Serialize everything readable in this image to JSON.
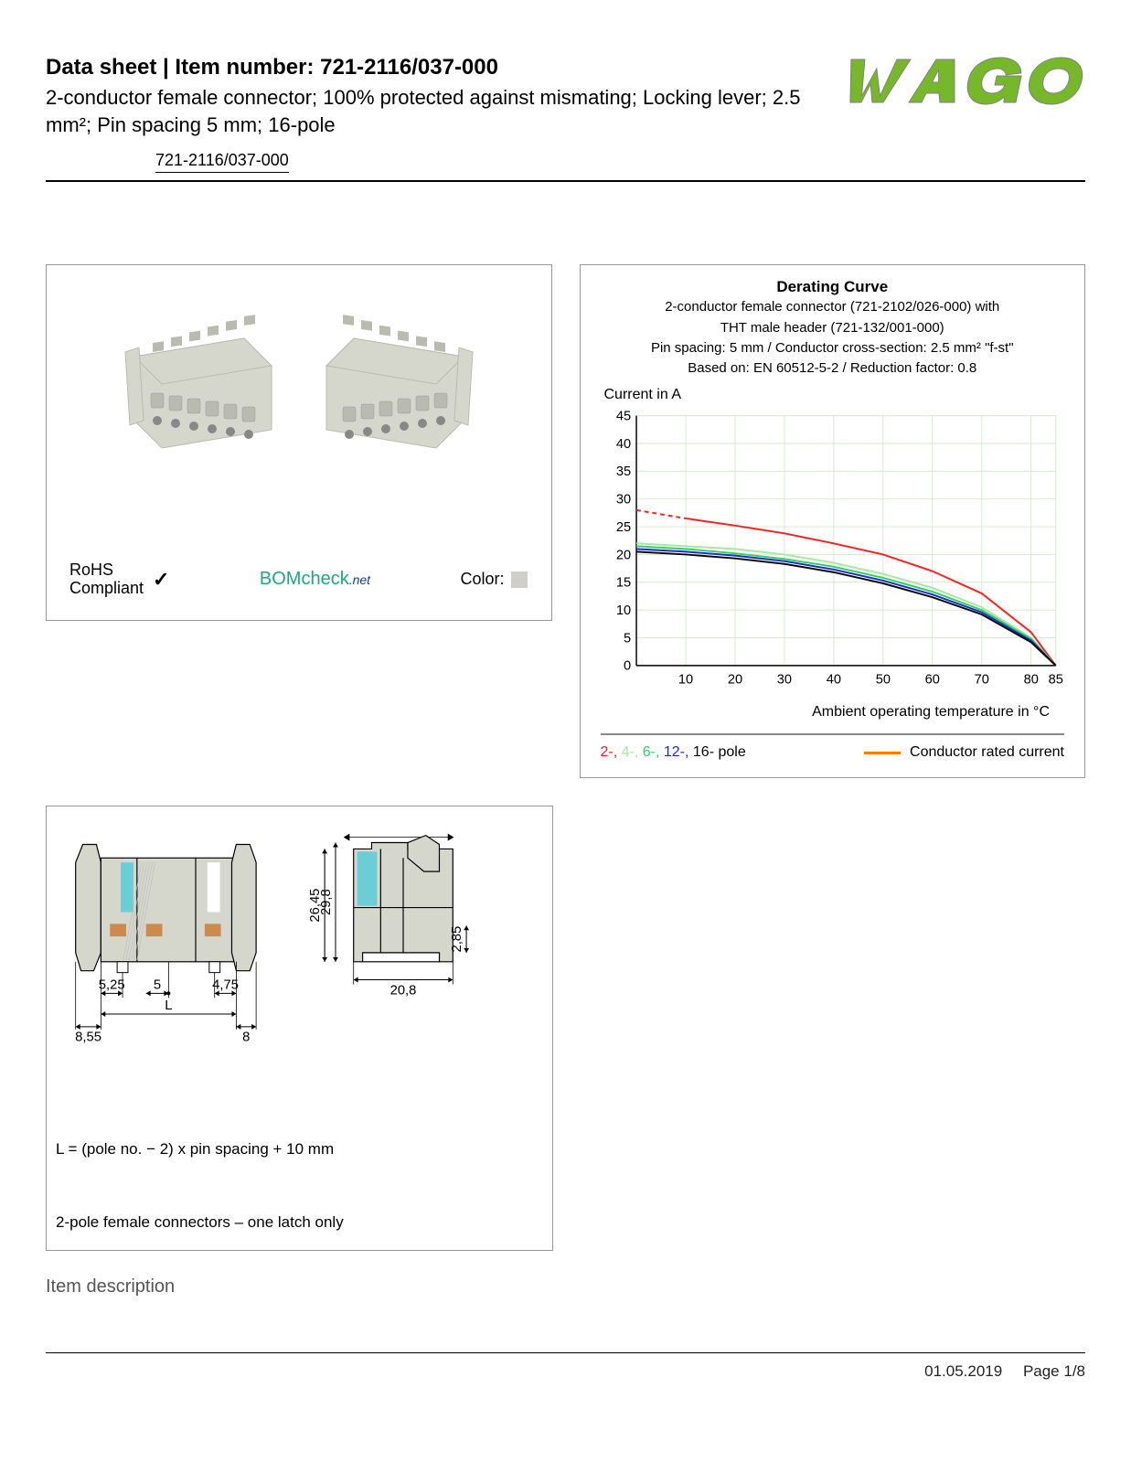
{
  "header": {
    "prefix": "Data sheet  |  Item number: ",
    "item_number": "721-2116/037-000",
    "subtitle": "2-conductor female connector; 100% protected against mismating; Locking lever; 2.5 mm²; Pin spacing 5 mm; 16-pole",
    "item_number_box": "721-2116/037-000"
  },
  "logo": {
    "text": "WAGO",
    "fill": "#76b82a",
    "outline": "#808080"
  },
  "product_panel": {
    "rohs_line1": "RoHS",
    "rohs_line2": "Compliant",
    "bomcheck": "BOMcheck",
    "bomcheck_suffix": ".net",
    "color_label": "Color:",
    "color_swatch": "#cfcfc8",
    "connector_body_color": "#d6d7cc",
    "connector_shadow": "#b9bab0"
  },
  "chart": {
    "title": "Derating Curve",
    "sub1": "2-conductor female connector (721-2102/026-000) with",
    "sub2": "THT male header (721-132/001-000)",
    "sub3": "Pin spacing: 5 mm / Conductor cross-section: 2.5 mm² \"f-st\"",
    "sub4": "Based on: EN 60512-5-2 / Reduction factor: 0.8",
    "y_caption": "Current in A",
    "x_caption": "Ambient operating temperature in °C",
    "ylim": [
      0,
      45
    ],
    "ytick_step": 5,
    "yticks": [
      0,
      5,
      10,
      15,
      20,
      25,
      30,
      35,
      40,
      45
    ],
    "xlim": [
      0,
      85
    ],
    "xticks": [
      10,
      20,
      30,
      40,
      50,
      60,
      70,
      80,
      85
    ],
    "grid_color": "#d7e8d0",
    "axis_color": "#000000",
    "series": [
      {
        "name": "2-pole",
        "color": "#ff1e1e",
        "dashed_start": true,
        "points": [
          [
            0,
            28
          ],
          [
            10,
            26.5
          ],
          [
            20,
            25.2
          ],
          [
            30,
            23.8
          ],
          [
            40,
            22
          ],
          [
            50,
            20
          ],
          [
            60,
            17
          ],
          [
            70,
            13
          ],
          [
            80,
            6
          ],
          [
            85,
            0
          ]
        ]
      },
      {
        "name": "4-pole",
        "color": "#a8e6a1",
        "points": [
          [
            0,
            22
          ],
          [
            10,
            21.5
          ],
          [
            20,
            21
          ],
          [
            30,
            20
          ],
          [
            40,
            18.5
          ],
          [
            50,
            16.5
          ],
          [
            60,
            14
          ],
          [
            70,
            10.5
          ],
          [
            80,
            5
          ],
          [
            85,
            0
          ]
        ]
      },
      {
        "name": "6-pole",
        "color": "#2bd457",
        "points": [
          [
            0,
            21.5
          ],
          [
            10,
            21
          ],
          [
            20,
            20.2
          ],
          [
            30,
            19.2
          ],
          [
            40,
            17.8
          ],
          [
            50,
            15.8
          ],
          [
            60,
            13.3
          ],
          [
            70,
            10
          ],
          [
            80,
            4.8
          ],
          [
            85,
            0
          ]
        ]
      },
      {
        "name": "12-pole",
        "color": "#1a2bd4",
        "points": [
          [
            0,
            21
          ],
          [
            10,
            20.5
          ],
          [
            20,
            19.8
          ],
          [
            30,
            18.8
          ],
          [
            40,
            17.3
          ],
          [
            50,
            15.3
          ],
          [
            60,
            12.8
          ],
          [
            70,
            9.6
          ],
          [
            80,
            4.5
          ],
          [
            85,
            0
          ]
        ]
      },
      {
        "name": "16-pole",
        "color": "#0a0a0a",
        "points": [
          [
            0,
            20.5
          ],
          [
            10,
            20
          ],
          [
            20,
            19.3
          ],
          [
            30,
            18.3
          ],
          [
            40,
            16.8
          ],
          [
            50,
            14.8
          ],
          [
            60,
            12.3
          ],
          [
            70,
            9.2
          ],
          [
            80,
            4.2
          ],
          [
            85,
            0
          ]
        ]
      }
    ],
    "legend_pole_colors": {
      "2": "#ff1e1e",
      "4": "#a8e6a1",
      "6": "#2bd457",
      "12": "#1a2bd4",
      "16": "#0a0a0a"
    },
    "legend_text_2": "2-, ",
    "legend_text_4": "4-, ",
    "legend_text_6": "6-, ",
    "legend_text_12": "12-, ",
    "legend_text_16": "16-",
    "legend_text_pole": " pole",
    "legend_conductor": "Conductor rated current",
    "legend_conductor_color": "#ff7a00"
  },
  "drawing": {
    "dims": {
      "d_5_25": "5,25",
      "d_5": "5",
      "d_4_75": "4,75",
      "d_8_55": "8,55",
      "d_L": "L",
      "d_8": "8",
      "d_29_8": "29,8",
      "d_26_45": "26,45",
      "d_20_8": "20,8",
      "d_2_85": "2,85"
    },
    "note1": "L = (pole no. − 2) x pin spacing + 10 mm",
    "note2": "2-pole female connectors – one latch only",
    "body_color": "#d6d7cc",
    "accent_color": "#6bcdd6",
    "copper_color": "#cc8a4d",
    "line_color": "#000000"
  },
  "section_heading": "Item description",
  "footer": {
    "date": "01.05.2019",
    "page": "Page 1/8"
  }
}
